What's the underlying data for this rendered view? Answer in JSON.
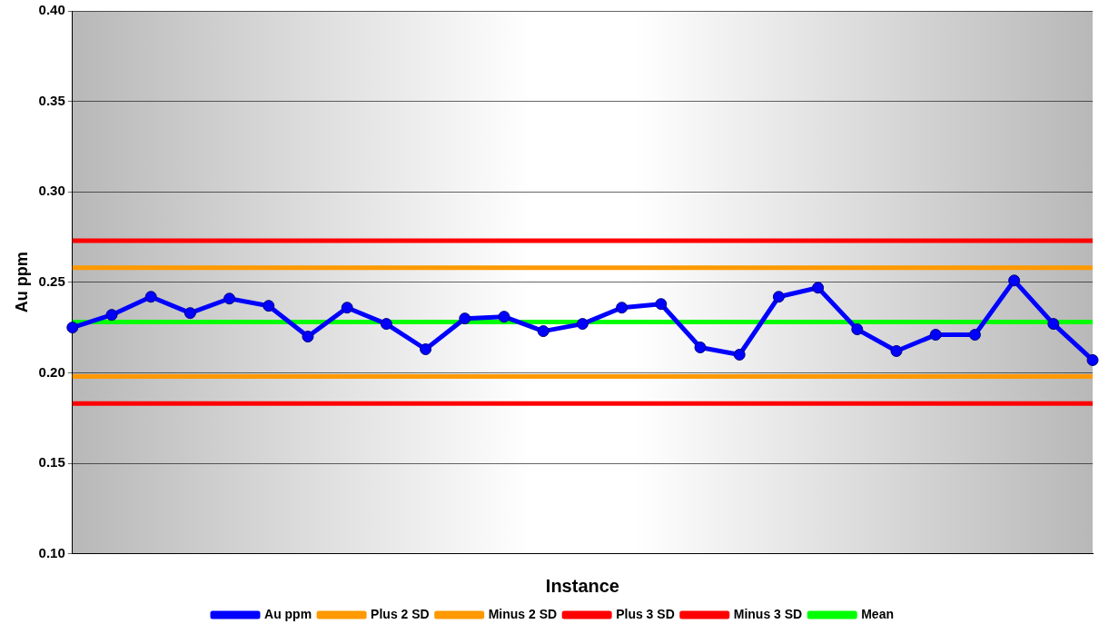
{
  "chart_data": {
    "type": "line",
    "xlabel": "Instance",
    "ylabel": "Au ppm",
    "categories": [
      null,
      null,
      null,
      null,
      null,
      null,
      null,
      null,
      null,
      null,
      null,
      null,
      null,
      null,
      null,
      null,
      null,
      null,
      null,
      null,
      null,
      null,
      null,
      null,
      null,
      null,
      null
    ],
    "series": [
      {
        "name": "Au ppm",
        "color": "#0000ff",
        "marker": "circle",
        "values": [
          0.225,
          0.232,
          0.242,
          0.233,
          0.241,
          0.237,
          0.22,
          0.236,
          0.227,
          0.213,
          0.23,
          0.231,
          0.223,
          0.227,
          0.236,
          0.238,
          0.214,
          0.21,
          0.242,
          0.247,
          0.224,
          0.212,
          0.221,
          0.221,
          0.251,
          0.227,
          0.207
        ]
      },
      {
        "name": "Plus 2 SD",
        "color": "#ff9900",
        "marker": "none",
        "values": [
          0.258,
          0.258,
          0.258,
          0.258,
          0.258,
          0.258,
          0.258,
          0.258,
          0.258,
          0.258,
          0.258,
          0.258,
          0.258,
          0.258,
          0.258,
          0.258,
          0.258,
          0.258,
          0.258,
          0.258,
          0.258,
          0.258,
          0.258,
          0.258,
          0.258,
          0.258,
          0.258
        ]
      },
      {
        "name": "Minus 2 SD",
        "color": "#ff9900",
        "marker": "none",
        "values": [
          0.198,
          0.198,
          0.198,
          0.198,
          0.198,
          0.198,
          0.198,
          0.198,
          0.198,
          0.198,
          0.198,
          0.198,
          0.198,
          0.198,
          0.198,
          0.198,
          0.198,
          0.198,
          0.198,
          0.198,
          0.198,
          0.198,
          0.198,
          0.198,
          0.198,
          0.198,
          0.198
        ]
      },
      {
        "name": "Plus 3 SD",
        "color": "#ff0000",
        "marker": "none",
        "values": [
          0.273,
          0.273,
          0.273,
          0.273,
          0.273,
          0.273,
          0.273,
          0.273,
          0.273,
          0.273,
          0.273,
          0.273,
          0.273,
          0.273,
          0.273,
          0.273,
          0.273,
          0.273,
          0.273,
          0.273,
          0.273,
          0.273,
          0.273,
          0.273,
          0.273,
          0.273,
          0.273
        ]
      },
      {
        "name": "Minus 3 SD",
        "color": "#ff0000",
        "marker": "none",
        "values": [
          0.183,
          0.183,
          0.183,
          0.183,
          0.183,
          0.183,
          0.183,
          0.183,
          0.183,
          0.183,
          0.183,
          0.183,
          0.183,
          0.183,
          0.183,
          0.183,
          0.183,
          0.183,
          0.183,
          0.183,
          0.183,
          0.183,
          0.183,
          0.183,
          0.183,
          0.183,
          0.183
        ]
      },
      {
        "name": "Mean",
        "color": "#00ff00",
        "marker": "none",
        "values": [
          0.228,
          0.228,
          0.228,
          0.228,
          0.228,
          0.228,
          0.228,
          0.228,
          0.228,
          0.228,
          0.228,
          0.228,
          0.228,
          0.228,
          0.228,
          0.228,
          0.228,
          0.228,
          0.228,
          0.228,
          0.228,
          0.228,
          0.228,
          0.228,
          0.228,
          0.228,
          0.228
        ]
      }
    ],
    "ylim": [
      0.1,
      0.4
    ],
    "yticks": [
      {
        "value": 0.1,
        "label": "0.10"
      },
      {
        "value": 0.15,
        "label": "0.15"
      },
      {
        "value": 0.2,
        "label": "0.20"
      },
      {
        "value": 0.25,
        "label": "0.25"
      },
      {
        "value": 0.3,
        "label": "0.30"
      },
      {
        "value": 0.35,
        "label": "0.35"
      },
      {
        "value": 0.4,
        "label": "0.40"
      }
    ],
    "grid": "y",
    "legend": "bottom",
    "line_style": "solid"
  }
}
